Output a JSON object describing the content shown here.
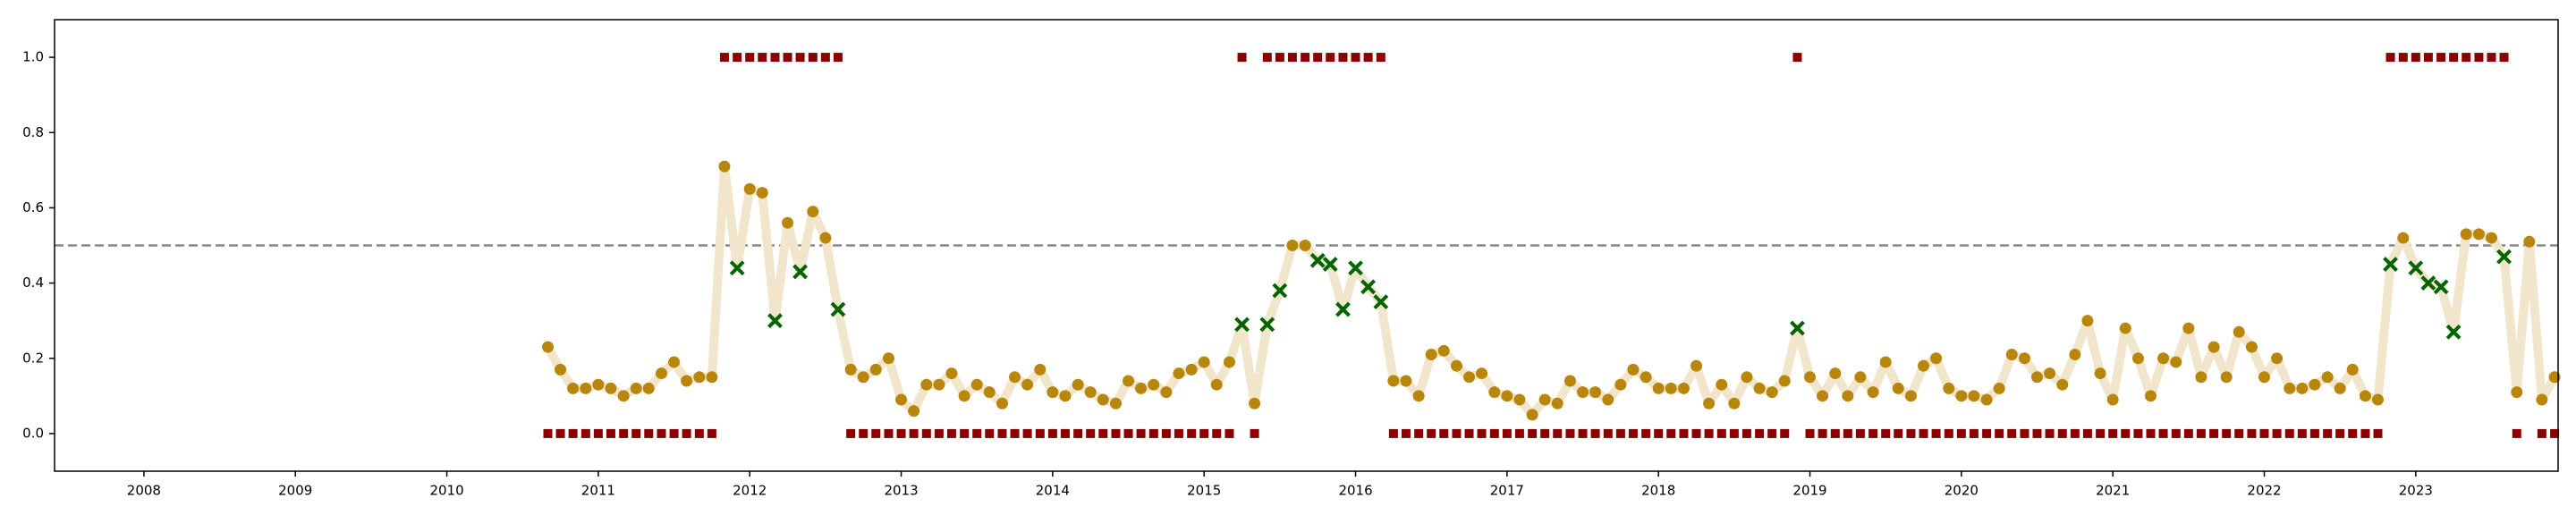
{
  "chart_data": {
    "type": "line",
    "x": [
      2010.667,
      2010.75,
      2010.833,
      2010.917,
      2011,
      2011.083,
      2011.167,
      2011.25,
      2011.333,
      2011.417,
      2011.5,
      2011.583,
      2011.667,
      2011.75,
      2011.833,
      2011.917,
      2012,
      2012.083,
      2012.167,
      2012.25,
      2012.333,
      2012.417,
      2012.5,
      2012.583,
      2012.667,
      2012.75,
      2012.833,
      2012.917,
      2013,
      2013.083,
      2013.167,
      2013.25,
      2013.333,
      2013.417,
      2013.5,
      2013.583,
      2013.667,
      2013.75,
      2013.833,
      2013.917,
      2014,
      2014.083,
      2014.167,
      2014.25,
      2014.333,
      2014.417,
      2014.5,
      2014.583,
      2014.667,
      2014.75,
      2014.833,
      2014.917,
      2015,
      2015.083,
      2015.167,
      2015.25,
      2015.333,
      2015.417,
      2015.5,
      2015.583,
      2015.667,
      2015.75,
      2015.833,
      2015.917,
      2016,
      2016.083,
      2016.167,
      2016.25,
      2016.333,
      2016.417,
      2016.5,
      2016.583,
      2016.667,
      2016.75,
      2016.833,
      2016.917,
      2017,
      2017.083,
      2017.167,
      2017.25,
      2017.333,
      2017.417,
      2017.5,
      2017.583,
      2017.667,
      2017.75,
      2017.833,
      2017.917,
      2018,
      2018.083,
      2018.167,
      2018.25,
      2018.333,
      2018.417,
      2018.5,
      2018.583,
      2018.667,
      2018.75,
      2018.833,
      2018.917,
      2019,
      2019.083,
      2019.167,
      2019.25,
      2019.333,
      2019.417,
      2019.5,
      2019.583,
      2019.667,
      2019.75,
      2019.833,
      2019.917,
      2020,
      2020.083,
      2020.167,
      2020.25,
      2020.333,
      2020.417,
      2020.5,
      2020.583,
      2020.667,
      2020.75,
      2020.833,
      2020.917,
      2021,
      2021.083,
      2021.167,
      2021.25,
      2021.333,
      2021.417,
      2021.5,
      2021.583,
      2021.667,
      2021.75,
      2021.833,
      2021.917,
      2022,
      2022.083,
      2022.167,
      2022.25,
      2022.333,
      2022.417,
      2022.5,
      2022.583,
      2022.667,
      2022.75,
      2022.833,
      2022.917,
      2023,
      2023.083,
      2023.167,
      2023.25,
      2023.333,
      2023.417,
      2023.5,
      2023.583,
      2023.667,
      2023.75,
      2023.833,
      2023.917
    ],
    "series": [
      {
        "color": "#b8860b",
        "line_color": "#f1e6cc",
        "cross_color": "#006400",
        "values": [
          0.23,
          0.17,
          0.12,
          0.12,
          0.13,
          0.12,
          0.1,
          0.12,
          0.12,
          0.16,
          0.19,
          0.14,
          0.15,
          0.15,
          0.71,
          0.44,
          0.65,
          0.64,
          0.3,
          0.56,
          0.43,
          0.59,
          0.52,
          0.33,
          0.17,
          0.15,
          0.17,
          0.2,
          0.09,
          0.06,
          0.13,
          0.13,
          0.16,
          0.1,
          0.13,
          0.11,
          0.08,
          0.15,
          0.13,
          0.17,
          0.11,
          0.1,
          0.13,
          0.11,
          0.09,
          0.08,
          0.14,
          0.12,
          0.13,
          0.11,
          0.16,
          0.17,
          0.19,
          0.13,
          0.19,
          0.29,
          0.08,
          0.29,
          0.38,
          0.5,
          0.5,
          0.46,
          0.45,
          0.33,
          0.44,
          0.39,
          0.35,
          0.14,
          0.14,
          0.1,
          0.21,
          0.22,
          0.18,
          0.15,
          0.16,
          0.11,
          0.1,
          0.09,
          0.05,
          0.09,
          0.08,
          0.14,
          0.11,
          0.11,
          0.09,
          0.13,
          0.17,
          0.15,
          0.12,
          0.12,
          0.12,
          0.18,
          0.08,
          0.13,
          0.08,
          0.15,
          0.12,
          0.11,
          0.14,
          0.28,
          0.15,
          0.1,
          0.16,
          0.1,
          0.15,
          0.11,
          0.19,
          0.12,
          0.1,
          0.18,
          0.2,
          0.12,
          0.1,
          0.1,
          0.09,
          0.12,
          0.21,
          0.2,
          0.15,
          0.16,
          0.13,
          0.21,
          0.3,
          0.16,
          0.09,
          0.28,
          0.2,
          0.1,
          0.2,
          0.19,
          0.28,
          0.15,
          0.23,
          0.15,
          0.27,
          0.23,
          0.15,
          0.2,
          0.12,
          0.12,
          0.13,
          0.15,
          0.12,
          0.17,
          0.1,
          0.09,
          0.45,
          0.52,
          0.44,
          0.4,
          0.39,
          0.27,
          0.53,
          0.53,
          0.52,
          0.47,
          0.11,
          0.51,
          0.09,
          0.15
        ]
      },
      {
        "color": "#8b0000",
        "values": [
          0,
          0,
          0,
          0,
          0,
          0,
          0,
          0,
          0,
          0,
          0,
          0,
          0,
          0,
          1,
          1,
          1,
          1,
          1,
          1,
          1,
          1,
          1,
          1,
          0,
          0,
          0,
          0,
          0,
          0,
          0,
          0,
          0,
          0,
          0,
          0,
          0,
          0,
          0,
          0,
          0,
          0,
          0,
          0,
          0,
          0,
          0,
          0,
          0,
          0,
          0,
          0,
          0,
          0,
          0,
          1,
          0,
          1,
          1,
          1,
          1,
          1,
          1,
          1,
          1,
          1,
          1,
          0,
          0,
          0,
          0,
          0,
          0,
          0,
          0,
          0,
          0,
          0,
          0,
          0,
          0,
          0,
          0,
          0,
          0,
          0,
          0,
          0,
          0,
          0,
          0,
          0,
          0,
          0,
          0,
          0,
          0,
          0,
          0,
          1,
          0,
          0,
          0,
          0,
          0,
          0,
          0,
          0,
          0,
          0,
          0,
          0,
          0,
          0,
          0,
          0,
          0,
          0,
          0,
          0,
          0,
          0,
          0,
          0,
          0,
          0,
          0,
          0,
          0,
          0,
          0,
          0,
          0,
          0,
          0,
          0,
          0,
          0,
          0,
          0,
          0,
          0,
          0,
          0,
          0,
          0,
          1,
          1,
          1,
          1,
          1,
          1,
          1,
          1,
          1,
          1,
          0,
          null,
          0,
          0
        ]
      }
    ],
    "reference_line": 0.5,
    "xlim": [
      2007.41,
      2023.94
    ],
    "xticks": [
      2008,
      2009,
      2010,
      2011,
      2012,
      2013,
      2014,
      2015,
      2016,
      2017,
      2018,
      2019,
      2020,
      2021,
      2022,
      2023
    ],
    "ylim": [
      -0.1,
      1.1
    ],
    "yticks": [
      {
        "value": 0,
        "label": "0.0"
      },
      {
        "value": 0.2,
        "label": "0.2"
      },
      {
        "value": 0.4,
        "label": "0.4"
      },
      {
        "value": 0.6,
        "label": "0.6"
      },
      {
        "value": 0.8,
        "label": "0.8"
      },
      {
        "value": 1,
        "label": "1.0"
      }
    ]
  }
}
